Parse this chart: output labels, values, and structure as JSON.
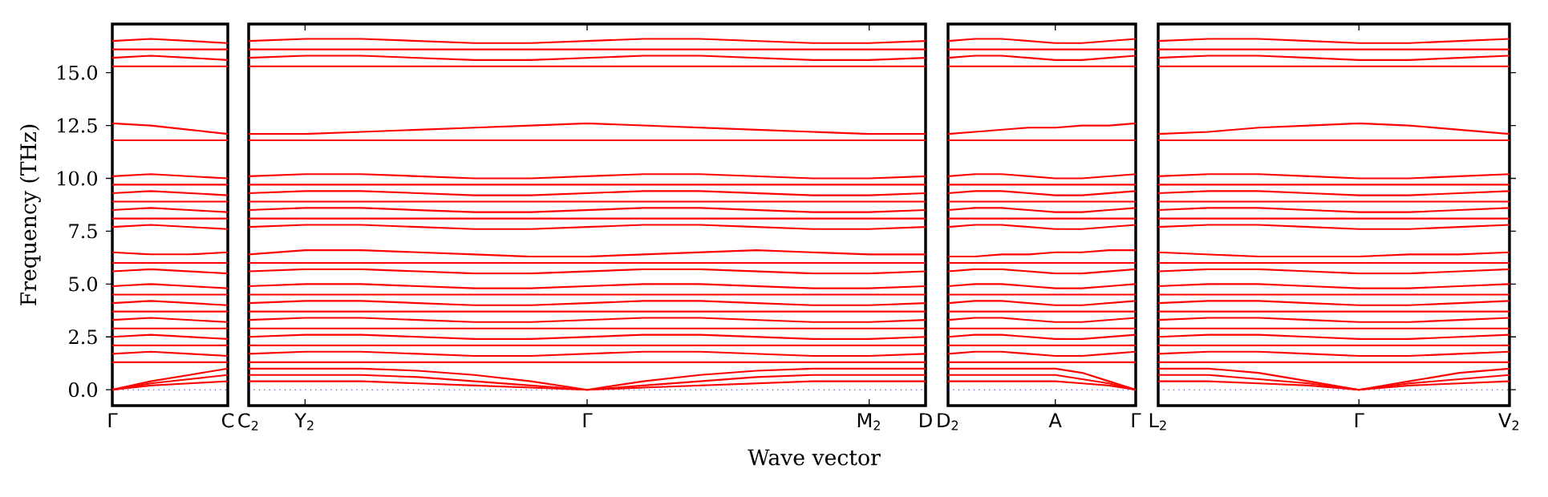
{
  "chart_data": [
    {
      "type": "line",
      "ylabel": "Frequency (THz)",
      "color": "#ff0000",
      "categories": [
        "Γ",
        null,
        null,
        "C"
      ],
      "ylim": [
        -0.75,
        17.3
      ],
      "yticks": [
        {
          "value": 0,
          "label": "0.0"
        },
        {
          "value": 2.5,
          "label": "2.5"
        },
        {
          "value": 5,
          "label": "5.0"
        },
        {
          "value": 7.5,
          "label": "7.5"
        },
        {
          "value": 10,
          "label": "10.0"
        },
        {
          "value": 12.5,
          "label": "12.5"
        },
        {
          "value": 15,
          "label": "15.0"
        }
      ],
      "ref_lines": [
        {
          "axis": "y",
          "value": 0,
          "color": "#0000ff",
          "line_style": "dotted"
        }
      ],
      "series": [
        {
          "values": [
            0,
            0.2,
            0.3,
            0.4
          ]
        },
        {
          "values": [
            0,
            0.3,
            0.5,
            0.7
          ]
        },
        {
          "values": [
            0,
            0.4,
            0.7,
            1.0
          ]
        },
        {
          "values": [
            1.3,
            1.3,
            1.3,
            1.3
          ]
        },
        {
          "values": [
            1.7,
            1.8,
            1.7,
            1.6
          ]
        },
        {
          "values": [
            2.1,
            2.1,
            2.1,
            2.1
          ]
        },
        {
          "values": [
            2.5,
            2.6,
            2.5,
            2.4
          ]
        },
        {
          "values": [
            2.9,
            2.9,
            2.9,
            2.9
          ]
        },
        {
          "values": [
            3.3,
            3.4,
            3.3,
            3.2
          ]
        },
        {
          "values": [
            3.7,
            3.7,
            3.7,
            3.7
          ]
        },
        {
          "values": [
            4.1,
            4.2,
            4.1,
            4.0
          ]
        },
        {
          "values": [
            4.5,
            4.5,
            4.5,
            4.5
          ]
        },
        {
          "values": [
            4.9,
            5.0,
            4.9,
            4.8
          ]
        },
        {
          "values": [
            5.6,
            5.7,
            5.6,
            5.5
          ]
        },
        {
          "values": [
            6.0,
            6.0,
            6.0,
            6.0
          ]
        },
        {
          "values": [
            6.5,
            6.4,
            6.4,
            6.5
          ]
        },
        {
          "values": [
            7.7,
            7.8,
            7.7,
            7.6
          ]
        },
        {
          "values": [
            8.1,
            8.1,
            8.1,
            8.1
          ]
        },
        {
          "values": [
            8.5,
            8.6,
            8.5,
            8.4
          ]
        },
        {
          "values": [
            8.9,
            8.9,
            8.9,
            8.9
          ]
        },
        {
          "values": [
            9.3,
            9.4,
            9.3,
            9.2
          ]
        },
        {
          "values": [
            9.7,
            9.7,
            9.7,
            9.7
          ]
        },
        {
          "values": [
            10.1,
            10.2,
            10.1,
            10.0
          ]
        },
        {
          "values": [
            11.8,
            11.8,
            11.8,
            11.8
          ]
        },
        {
          "values": [
            12.6,
            12.5,
            12.3,
            12.1
          ]
        },
        {
          "values": [
            15.3,
            15.3,
            15.3,
            15.3
          ]
        },
        {
          "values": [
            15.7,
            15.8,
            15.7,
            15.6
          ]
        },
        {
          "values": [
            16.1,
            16.1,
            16.1,
            16.1
          ]
        },
        {
          "values": [
            16.5,
            16.6,
            16.5,
            16.4
          ]
        }
      ]
    },
    {
      "type": "line",
      "xlabel": "Wave vector",
      "color": "#ff0000",
      "tick_labels": "x",
      "categories": [
        "C$_{2}$",
        "Y$_{2}$",
        null,
        null,
        null,
        null,
        "Γ",
        null,
        null,
        null,
        null,
        "M$_{2}$",
        "D"
      ],
      "ylim": [
        -0.75,
        17.3
      ],
      "yticks": [
        0,
        2.5,
        5,
        7.5,
        10,
        12.5,
        15
      ],
      "ref_lines": [
        {
          "axis": "y",
          "value": 0,
          "color": "#0000ff",
          "line_style": "dotted"
        }
      ],
      "series": [
        {
          "values": [
            0.4,
            0.4,
            0.4,
            0.3,
            0.2,
            0.1,
            0,
            0.1,
            0.2,
            0.3,
            0.4,
            0.4,
            0.4
          ]
        },
        {
          "values": [
            0.7,
            0.7,
            0.7,
            0.6,
            0.4,
            0.2,
            0,
            0.2,
            0.4,
            0.6,
            0.7,
            0.7,
            0.7
          ]
        },
        {
          "values": [
            1.0,
            1.0,
            1.0,
            0.9,
            0.7,
            0.4,
            0,
            0.4,
            0.7,
            0.9,
            1.0,
            1.0,
            1.0
          ]
        },
        {
          "values": [
            1.3,
            1.3,
            1.3,
            1.3,
            1.3,
            1.3,
            1.3,
            1.3,
            1.3,
            1.3,
            1.3,
            1.3,
            1.3
          ]
        },
        {
          "values": [
            1.7,
            1.8,
            1.8,
            1.7,
            1.6,
            1.6,
            1.7,
            1.8,
            1.8,
            1.7,
            1.6,
            1.6,
            1.7
          ]
        },
        {
          "values": [
            2.1,
            2.1,
            2.1,
            2.1,
            2.1,
            2.1,
            2.1,
            2.1,
            2.1,
            2.1,
            2.1,
            2.1,
            2.1
          ]
        },
        {
          "values": [
            2.5,
            2.6,
            2.6,
            2.5,
            2.4,
            2.4,
            2.5,
            2.6,
            2.6,
            2.5,
            2.4,
            2.4,
            2.5
          ]
        },
        {
          "values": [
            2.9,
            2.9,
            2.9,
            2.9,
            2.9,
            2.9,
            2.9,
            2.9,
            2.9,
            2.9,
            2.9,
            2.9,
            2.9
          ]
        },
        {
          "values": [
            3.3,
            3.4,
            3.4,
            3.3,
            3.2,
            3.2,
            3.3,
            3.4,
            3.4,
            3.3,
            3.2,
            3.2,
            3.3
          ]
        },
        {
          "values": [
            3.7,
            3.7,
            3.7,
            3.7,
            3.7,
            3.7,
            3.7,
            3.7,
            3.7,
            3.7,
            3.7,
            3.7,
            3.7
          ]
        },
        {
          "values": [
            4.1,
            4.2,
            4.2,
            4.1,
            4.0,
            4.0,
            4.1,
            4.2,
            4.2,
            4.1,
            4.0,
            4.0,
            4.1
          ]
        },
        {
          "values": [
            4.5,
            4.5,
            4.5,
            4.5,
            4.5,
            4.5,
            4.5,
            4.5,
            4.5,
            4.5,
            4.5,
            4.5,
            4.5
          ]
        },
        {
          "values": [
            4.9,
            5.0,
            5.0,
            4.9,
            4.8,
            4.8,
            4.9,
            5.0,
            5.0,
            4.9,
            4.8,
            4.8,
            4.9
          ]
        },
        {
          "values": [
            5.6,
            5.7,
            5.7,
            5.6,
            5.5,
            5.5,
            5.6,
            5.7,
            5.7,
            5.6,
            5.5,
            5.5,
            5.6
          ]
        },
        {
          "values": [
            6.0,
            6.0,
            6.0,
            6.0,
            6.0,
            6.0,
            6.0,
            6.0,
            6.0,
            6.0,
            6.0,
            6.0,
            6.0
          ]
        },
        {
          "values": [
            6.4,
            6.6,
            6.6,
            6.5,
            6.4,
            6.3,
            6.3,
            6.4,
            6.5,
            6.6,
            6.5,
            6.4,
            6.4
          ]
        },
        {
          "values": [
            7.7,
            7.8,
            7.8,
            7.7,
            7.6,
            7.6,
            7.7,
            7.8,
            7.8,
            7.7,
            7.6,
            7.6,
            7.7
          ]
        },
        {
          "values": [
            8.1,
            8.1,
            8.1,
            8.1,
            8.1,
            8.1,
            8.1,
            8.1,
            8.1,
            8.1,
            8.1,
            8.1,
            8.1
          ]
        },
        {
          "values": [
            8.5,
            8.6,
            8.6,
            8.5,
            8.4,
            8.4,
            8.5,
            8.6,
            8.6,
            8.5,
            8.4,
            8.4,
            8.5
          ]
        },
        {
          "values": [
            8.9,
            8.9,
            8.9,
            8.9,
            8.9,
            8.9,
            8.9,
            8.9,
            8.9,
            8.9,
            8.9,
            8.9,
            8.9
          ]
        },
        {
          "values": [
            9.3,
            9.4,
            9.4,
            9.3,
            9.2,
            9.2,
            9.3,
            9.4,
            9.4,
            9.3,
            9.2,
            9.2,
            9.3
          ]
        },
        {
          "values": [
            9.7,
            9.7,
            9.7,
            9.7,
            9.7,
            9.7,
            9.7,
            9.7,
            9.7,
            9.7,
            9.7,
            9.7,
            9.7
          ]
        },
        {
          "values": [
            10.1,
            10.2,
            10.2,
            10.1,
            10.0,
            10.0,
            10.1,
            10.2,
            10.2,
            10.1,
            10.0,
            10.0,
            10.1
          ]
        },
        {
          "values": [
            11.8,
            11.8,
            11.8,
            11.8,
            11.8,
            11.8,
            11.8,
            11.8,
            11.8,
            11.8,
            11.8,
            11.8,
            11.8
          ]
        },
        {
          "values": [
            12.1,
            12.1,
            12.2,
            12.3,
            12.4,
            12.5,
            12.6,
            12.5,
            12.4,
            12.3,
            12.2,
            12.1,
            12.1
          ]
        },
        {
          "values": [
            15.3,
            15.3,
            15.3,
            15.3,
            15.3,
            15.3,
            15.3,
            15.3,
            15.3,
            15.3,
            15.3,
            15.3,
            15.3
          ]
        },
        {
          "values": [
            15.7,
            15.8,
            15.8,
            15.7,
            15.6,
            15.6,
            15.7,
            15.8,
            15.8,
            15.7,
            15.6,
            15.6,
            15.7
          ]
        },
        {
          "values": [
            16.1,
            16.1,
            16.1,
            16.1,
            16.1,
            16.1,
            16.1,
            16.1,
            16.1,
            16.1,
            16.1,
            16.1,
            16.1
          ]
        },
        {
          "values": [
            16.5,
            16.6,
            16.6,
            16.5,
            16.4,
            16.4,
            16.5,
            16.6,
            16.6,
            16.5,
            16.4,
            16.4,
            16.5
          ]
        }
      ]
    },
    {
      "type": "line",
      "color": "#ff0000",
      "tick_labels": "x",
      "categories": [
        "D$_{2}$",
        null,
        null,
        null,
        "A",
        null,
        null,
        "Γ"
      ],
      "ylim": [
        -0.75,
        17.3
      ],
      "yticks": [
        0,
        2.5,
        5,
        7.5,
        10,
        12.5,
        15
      ],
      "ref_lines": [
        {
          "axis": "y",
          "value": 0,
          "color": "#0000ff",
          "line_style": "dotted"
        }
      ],
      "series": [
        {
          "values": [
            0.4,
            0.4,
            0.4,
            0.4,
            0.4,
            0.3,
            0.2,
            0
          ]
        },
        {
          "values": [
            0.7,
            0.7,
            0.7,
            0.7,
            0.7,
            0.5,
            0.3,
            0
          ]
        },
        {
          "values": [
            1.0,
            1.0,
            1.0,
            1.0,
            1.0,
            0.8,
            0.4,
            0
          ]
        },
        {
          "values": [
            1.3,
            1.3,
            1.3,
            1.3,
            1.3,
            1.3,
            1.3,
            1.3
          ]
        },
        {
          "values": [
            1.7,
            1.8,
            1.8,
            1.7,
            1.6,
            1.6,
            1.7,
            1.8
          ]
        },
        {
          "values": [
            2.1,
            2.1,
            2.1,
            2.1,
            2.1,
            2.1,
            2.1,
            2.1
          ]
        },
        {
          "values": [
            2.5,
            2.6,
            2.6,
            2.5,
            2.4,
            2.4,
            2.5,
            2.6
          ]
        },
        {
          "values": [
            2.9,
            2.9,
            2.9,
            2.9,
            2.9,
            2.9,
            2.9,
            2.9
          ]
        },
        {
          "values": [
            3.3,
            3.4,
            3.4,
            3.3,
            3.2,
            3.2,
            3.3,
            3.4
          ]
        },
        {
          "values": [
            3.7,
            3.7,
            3.7,
            3.7,
            3.7,
            3.7,
            3.7,
            3.7
          ]
        },
        {
          "values": [
            4.1,
            4.2,
            4.2,
            4.1,
            4.0,
            4.0,
            4.1,
            4.2
          ]
        },
        {
          "values": [
            4.5,
            4.5,
            4.5,
            4.5,
            4.5,
            4.5,
            4.5,
            4.5
          ]
        },
        {
          "values": [
            4.9,
            5.0,
            5.0,
            4.9,
            4.8,
            4.8,
            4.9,
            5.0
          ]
        },
        {
          "values": [
            5.6,
            5.7,
            5.7,
            5.6,
            5.5,
            5.5,
            5.6,
            5.7
          ]
        },
        {
          "values": [
            6.0,
            6.0,
            6.0,
            6.0,
            6.0,
            6.0,
            6.0,
            6.0
          ]
        },
        {
          "values": [
            6.3,
            6.3,
            6.4,
            6.4,
            6.5,
            6.5,
            6.6,
            6.6
          ]
        },
        {
          "values": [
            7.7,
            7.8,
            7.8,
            7.7,
            7.6,
            7.6,
            7.7,
            7.8
          ]
        },
        {
          "values": [
            8.1,
            8.1,
            8.1,
            8.1,
            8.1,
            8.1,
            8.1,
            8.1
          ]
        },
        {
          "values": [
            8.5,
            8.6,
            8.6,
            8.5,
            8.4,
            8.4,
            8.5,
            8.6
          ]
        },
        {
          "values": [
            8.9,
            8.9,
            8.9,
            8.9,
            8.9,
            8.9,
            8.9,
            8.9
          ]
        },
        {
          "values": [
            9.3,
            9.4,
            9.4,
            9.3,
            9.2,
            9.2,
            9.3,
            9.4
          ]
        },
        {
          "values": [
            9.7,
            9.7,
            9.7,
            9.7,
            9.7,
            9.7,
            9.7,
            9.7
          ]
        },
        {
          "values": [
            10.1,
            10.2,
            10.2,
            10.1,
            10.0,
            10.0,
            10.1,
            10.2
          ]
        },
        {
          "values": [
            11.8,
            11.8,
            11.8,
            11.8,
            11.8,
            11.8,
            11.8,
            11.8
          ]
        },
        {
          "values": [
            12.1,
            12.2,
            12.3,
            12.4,
            12.4,
            12.5,
            12.5,
            12.6
          ]
        },
        {
          "values": [
            15.3,
            15.3,
            15.3,
            15.3,
            15.3,
            15.3,
            15.3,
            15.3
          ]
        },
        {
          "values": [
            15.7,
            15.8,
            15.8,
            15.7,
            15.6,
            15.6,
            15.7,
            15.8
          ]
        },
        {
          "values": [
            16.1,
            16.1,
            16.1,
            16.1,
            16.1,
            16.1,
            16.1,
            16.1
          ]
        },
        {
          "values": [
            16.5,
            16.6,
            16.6,
            16.5,
            16.4,
            16.4,
            16.5,
            16.6
          ]
        }
      ]
    },
    {
      "type": "line",
      "color": "#ff0000",
      "tick_labels": "x",
      "categories": [
        "L$_{2}$",
        null,
        null,
        null,
        "Γ",
        null,
        null,
        "V$_{2}$"
      ],
      "ylim": [
        -0.75,
        17.3
      ],
      "yticks": [
        0,
        2.5,
        5,
        7.5,
        10,
        12.5,
        15
      ],
      "ref_lines": [
        {
          "axis": "y",
          "value": 0,
          "color": "#0000ff",
          "line_style": "dotted"
        }
      ],
      "series": [
        {
          "values": [
            0.4,
            0.4,
            0.3,
            0.2,
            0,
            0.2,
            0.3,
            0.4
          ]
        },
        {
          "values": [
            0.7,
            0.7,
            0.5,
            0.3,
            0,
            0.3,
            0.5,
            0.7
          ]
        },
        {
          "values": [
            1.0,
            1.0,
            0.8,
            0.4,
            0,
            0.4,
            0.8,
            1.0
          ]
        },
        {
          "values": [
            1.3,
            1.3,
            1.3,
            1.3,
            1.3,
            1.3,
            1.3,
            1.3
          ]
        },
        {
          "values": [
            1.7,
            1.8,
            1.8,
            1.7,
            1.6,
            1.6,
            1.7,
            1.8
          ]
        },
        {
          "values": [
            2.1,
            2.1,
            2.1,
            2.1,
            2.1,
            2.1,
            2.1,
            2.1
          ]
        },
        {
          "values": [
            2.5,
            2.6,
            2.6,
            2.5,
            2.4,
            2.4,
            2.5,
            2.6
          ]
        },
        {
          "values": [
            2.9,
            2.9,
            2.9,
            2.9,
            2.9,
            2.9,
            2.9,
            2.9
          ]
        },
        {
          "values": [
            3.3,
            3.4,
            3.4,
            3.3,
            3.2,
            3.2,
            3.3,
            3.4
          ]
        },
        {
          "values": [
            3.7,
            3.7,
            3.7,
            3.7,
            3.7,
            3.7,
            3.7,
            3.7
          ]
        },
        {
          "values": [
            4.1,
            4.2,
            4.2,
            4.1,
            4.0,
            4.0,
            4.1,
            4.2
          ]
        },
        {
          "values": [
            4.5,
            4.5,
            4.5,
            4.5,
            4.5,
            4.5,
            4.5,
            4.5
          ]
        },
        {
          "values": [
            4.9,
            5.0,
            5.0,
            4.9,
            4.8,
            4.8,
            4.9,
            5.0
          ]
        },
        {
          "values": [
            5.6,
            5.7,
            5.7,
            5.6,
            5.5,
            5.5,
            5.6,
            5.7
          ]
        },
        {
          "values": [
            6.0,
            6.0,
            6.0,
            6.0,
            6.0,
            6.0,
            6.0,
            6.0
          ]
        },
        {
          "values": [
            6.5,
            6.4,
            6.3,
            6.3,
            6.3,
            6.4,
            6.4,
            6.5
          ]
        },
        {
          "values": [
            7.7,
            7.8,
            7.8,
            7.7,
            7.6,
            7.6,
            7.7,
            7.8
          ]
        },
        {
          "values": [
            8.1,
            8.1,
            8.1,
            8.1,
            8.1,
            8.1,
            8.1,
            8.1
          ]
        },
        {
          "values": [
            8.5,
            8.6,
            8.6,
            8.5,
            8.4,
            8.4,
            8.5,
            8.6
          ]
        },
        {
          "values": [
            8.9,
            8.9,
            8.9,
            8.9,
            8.9,
            8.9,
            8.9,
            8.9
          ]
        },
        {
          "values": [
            9.3,
            9.4,
            9.4,
            9.3,
            9.2,
            9.2,
            9.3,
            9.4
          ]
        },
        {
          "values": [
            9.7,
            9.7,
            9.7,
            9.7,
            9.7,
            9.7,
            9.7,
            9.7
          ]
        },
        {
          "values": [
            10.1,
            10.2,
            10.2,
            10.1,
            10.0,
            10.0,
            10.1,
            10.2
          ]
        },
        {
          "values": [
            11.8,
            11.8,
            11.8,
            11.8,
            11.8,
            11.8,
            11.8,
            11.8
          ]
        },
        {
          "values": [
            12.1,
            12.2,
            12.4,
            12.5,
            12.6,
            12.5,
            12.3,
            12.1
          ]
        },
        {
          "values": [
            15.3,
            15.3,
            15.3,
            15.3,
            15.3,
            15.3,
            15.3,
            15.3
          ]
        },
        {
          "values": [
            15.7,
            15.8,
            15.8,
            15.7,
            15.6,
            15.6,
            15.7,
            15.8
          ]
        },
        {
          "values": [
            16.1,
            16.1,
            16.1,
            16.1,
            16.1,
            16.1,
            16.1,
            16.1
          ]
        },
        {
          "values": [
            16.5,
            16.6,
            16.6,
            16.5,
            16.4,
            16.4,
            16.5,
            16.6
          ]
        }
      ]
    }
  ]
}
